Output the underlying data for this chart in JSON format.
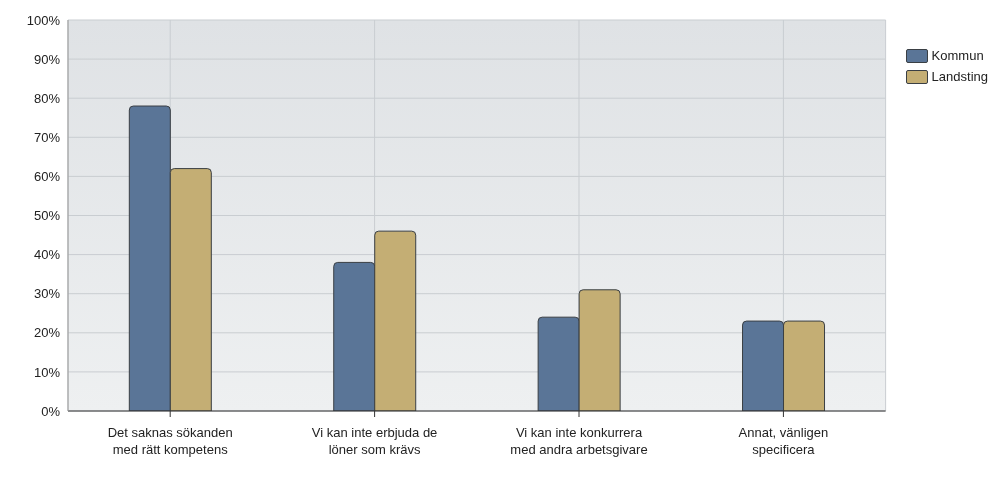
{
  "chart_data": {
    "type": "bar",
    "categories": [
      "Det saknas sökanden med rätt kompetens",
      "Vi kan inte erbjuda de löner som krävs",
      "Vi kan inte konkurrera med andra arbetsgivare",
      "Annat, vänligen specificera"
    ],
    "series": [
      {
        "name": "Kommun",
        "color": "#5a7597",
        "values": [
          78,
          38,
          24,
          23
        ]
      },
      {
        "name": "Landsting",
        "color": "#c4ae74",
        "values": [
          62,
          46,
          31,
          23
        ]
      }
    ],
    "ylim": [
      0,
      100
    ],
    "yticks": [
      {
        "value": 0,
        "label": "0%"
      },
      {
        "value": 10,
        "label": "10%"
      },
      {
        "value": 20,
        "label": "20%"
      },
      {
        "value": 30,
        "label": "30%"
      },
      {
        "value": 40,
        "label": "40%"
      },
      {
        "value": 50,
        "label": "50%"
      },
      {
        "value": 60,
        "label": "60%"
      },
      {
        "value": 70,
        "label": "70%"
      },
      {
        "value": 80,
        "label": "80%"
      },
      {
        "value": 90,
        "label": "90%"
      },
      {
        "value": 100,
        "label": "100%"
      }
    ],
    "grid": true,
    "legend": "top right"
  }
}
